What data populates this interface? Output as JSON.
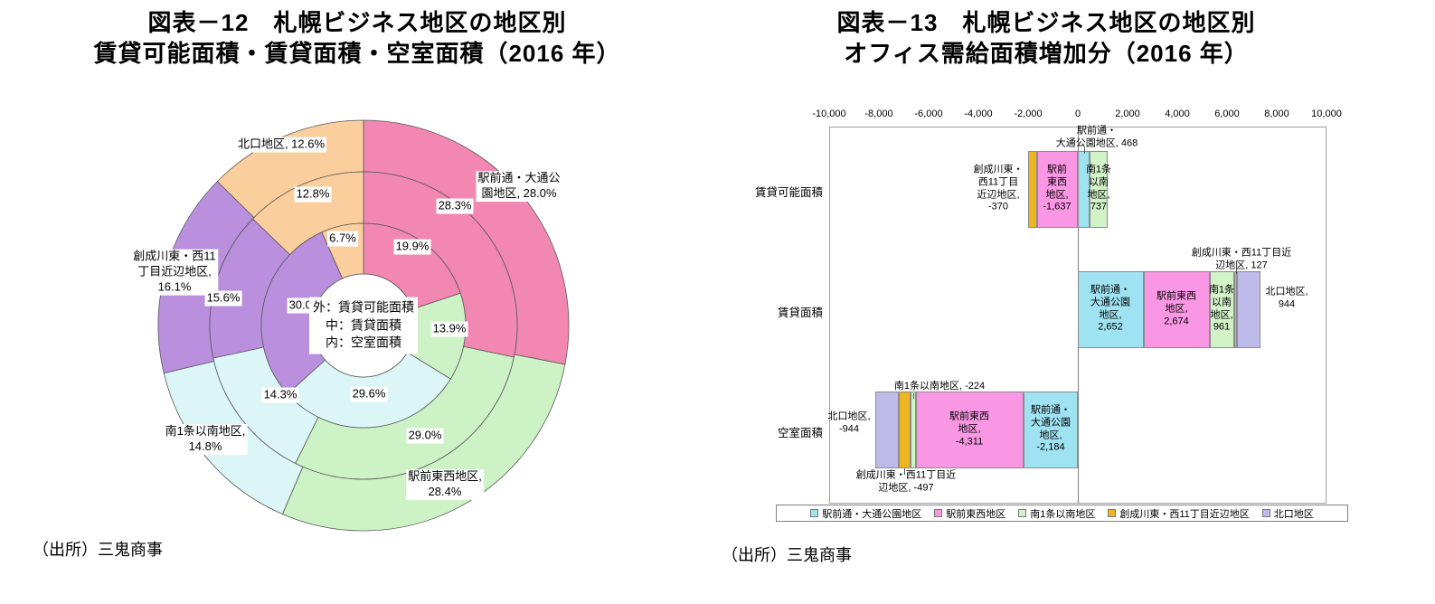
{
  "left_chart": {
    "title_line1": "図表－12　札幌ビジネス地区の地区別",
    "title_line2": "賃貸可能面積・賃貸面積・空室面積（2016 年）",
    "source": "（出所）三鬼商事",
    "center_label": "外：賃貸可能面積\n中：賃貸面積\n内：空室面積",
    "chart_data": {
      "type": "pie",
      "subtype": "nested-donut",
      "categories": [
        "駅前通・大通公園地区",
        "駅前東西地区",
        "南1条以南地区",
        "創成川東・西11丁目近辺地区",
        "北口地区"
      ],
      "colors": [
        "#f287b2",
        "#cdf2c5",
        "#dcf6f8",
        "#b98fde",
        "#fbce9e"
      ],
      "rings": [
        {
          "name": "賃貸可能面積",
          "position": "outer",
          "values": [
            28.0,
            28.4,
            14.8,
            16.1,
            12.6
          ]
        },
        {
          "name": "賃貸面積",
          "position": "middle",
          "values": [
            28.3,
            29.0,
            14.3,
            15.6,
            12.8
          ]
        },
        {
          "name": "空室面積",
          "position": "inner",
          "values": [
            19.9,
            13.9,
            29.6,
            30.0,
            6.7
          ]
        }
      ],
      "outer_labels": [
        "駅前通・大通公\n園地区, 28.0%",
        "駅前東西地区,\n28.4%",
        "南1条以南地区,\n14.8%",
        "創成川東・西11\n丁目近辺地区,\n16.1%",
        "北口地区, 12.6%"
      ],
      "middle_labels": [
        "28.3%",
        "29.0%",
        "14.3%",
        "15.6%",
        "12.8%"
      ],
      "inner_labels": [
        "19.9%",
        "13.9%",
        "29.6%",
        "30.0%",
        "6.7%"
      ]
    }
  },
  "right_chart": {
    "title_line1": "図表－13　札幌ビジネス地区の地区別",
    "title_line2": "オフィス需給面積増加分（2016 年）",
    "source": "（出所）三鬼商事",
    "chart_data": {
      "type": "bar",
      "subtype": "horizontal-stacked",
      "categories": [
        "賃貸可能面積",
        "賃貸面積",
        "空室面積"
      ],
      "series": [
        {
          "name": "駅前通・大通公園地区",
          "color": "#9fe3f2",
          "values": [
            468,
            2652,
            -2184
          ]
        },
        {
          "name": "駅前東西地区",
          "color": "#fa97e4",
          "values": [
            -1637,
            2674,
            -4311
          ]
        },
        {
          "name": "南1条以南地区",
          "color": "#d2f2c8",
          "values": [
            737,
            961,
            -224
          ]
        },
        {
          "name": "創成川東・西11丁目近辺地区",
          "color": "#edb520",
          "values": [
            -370,
            127,
            -497
          ]
        },
        {
          "name": "北口地区",
          "color": "#bebae9",
          "values": [
            null,
            944,
            -944
          ]
        }
      ],
      "xlim": [
        -10000,
        10000
      ],
      "x_ticks": [
        "-10,000",
        "-8,000",
        "-6,000",
        "-4,000",
        "-2,000",
        "0",
        "2,000",
        "4,000",
        "6,000",
        "8,000",
        "10,000"
      ],
      "legend_position": "bottom",
      "bar_labels": [
        "駅前通・\n大通公園地区, 468",
        "創成川東・\n西11丁目\n近辺地区,\n-370",
        "駅前\n東西\n地区,\n-1,637",
        "南1条\n以南\n地区,\n737",
        "駅前通・\n大通公園\n地区,\n2,652",
        "駅前東西\n地区,\n2,674",
        "南1条\n以南\n地区,\n961",
        "創成川東・西11丁目近\n辺地区, 127",
        "北口地区,\n944",
        "北口地区,\n-944",
        "南1条以南地区, -224",
        "駅前東西\n地区,\n-4,311",
        "駅前通・\n大通公園\n地区,\n-2,184",
        "創成川東・西11丁目近\n辺地区, -497"
      ]
    }
  }
}
